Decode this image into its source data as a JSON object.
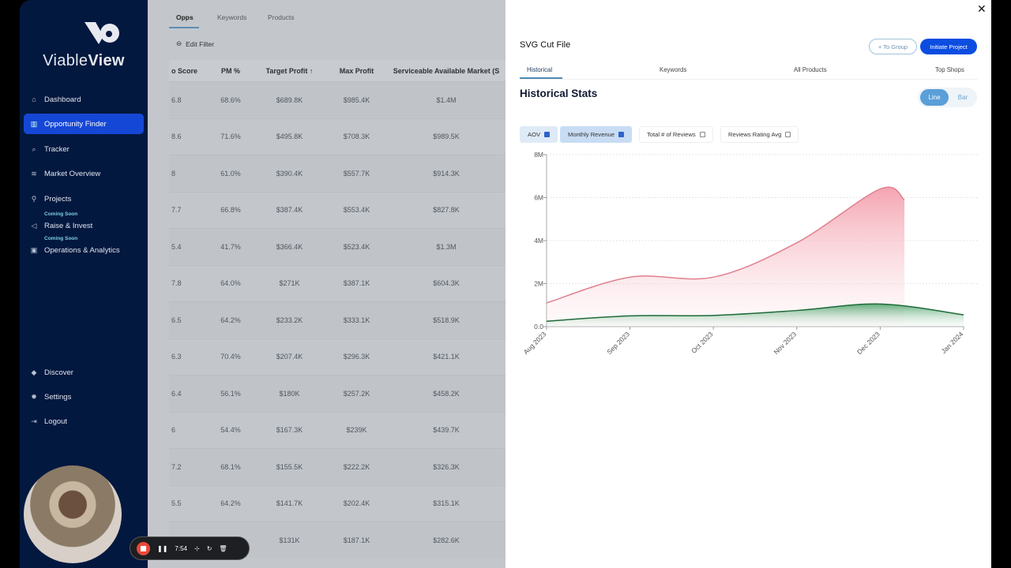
{
  "sidebar": {
    "brand_light": "Viable",
    "brand_bold": "View",
    "items": [
      {
        "label": "Dashboard",
        "icon": "home-icon"
      },
      {
        "label": "Opportunity Finder",
        "icon": "briefcase-icon",
        "active": true
      },
      {
        "label": "Tracker",
        "icon": "search-icon"
      },
      {
        "label": "Market Overview",
        "icon": "layers-icon"
      },
      {
        "label": "Projects",
        "icon": "wrench-icon"
      },
      {
        "label": "Raise & Invest",
        "icon": "megaphone-icon",
        "badge": "Coming Soon"
      },
      {
        "label": "Operations & Analytics",
        "icon": "calendar-icon",
        "badge": "Coming Soon"
      }
    ],
    "bottom": [
      {
        "label": "Discover",
        "icon": "graduation-icon"
      },
      {
        "label": "Settings",
        "icon": "gear-icon"
      },
      {
        "label": "Logout",
        "icon": "logout-icon"
      }
    ]
  },
  "main": {
    "tabs": [
      "Opps",
      "Keywords",
      "Products"
    ],
    "active_tab": "Opps",
    "edit_filter": "Edit Filter",
    "columns": [
      "o Score",
      "PM %",
      "Target Profit ↑",
      "Max Profit",
      "Serviceable Available Market (S"
    ],
    "rows": [
      [
        "6.8",
        "68.6%",
        "$689.8K",
        "$985.4K",
        "$1.4M"
      ],
      [
        "8.6",
        "71.6%",
        "$495.8K",
        "$708.3K",
        "$989.5K"
      ],
      [
        "8",
        "61.0%",
        "$390.4K",
        "$557.7K",
        "$914.3K"
      ],
      [
        "7.7",
        "66.8%",
        "$387.4K",
        "$553.4K",
        "$827.8K"
      ],
      [
        "5.4",
        "41.7%",
        "$366.4K",
        "$523.4K",
        "$1.3M"
      ],
      [
        "7.8",
        "64.0%",
        "$271K",
        "$387.1K",
        "$604.3K"
      ],
      [
        "6.5",
        "64.2%",
        "$233.2K",
        "$333.1K",
        "$518.9K"
      ],
      [
        "6.3",
        "70.4%",
        "$207.4K",
        "$296.3K",
        "$421.1K"
      ],
      [
        "6.4",
        "56.1%",
        "$180K",
        "$257.2K",
        "$458.2K"
      ],
      [
        "6",
        "54.4%",
        "$167.3K",
        "$239K",
        "$439.7K"
      ],
      [
        "7.2",
        "68.1%",
        "$155.5K",
        "$222.2K",
        "$326.3K"
      ],
      [
        "5.5",
        "64.2%",
        "$141.7K",
        "$202.4K",
        "$315.1K"
      ],
      [
        "",
        "",
        "$131K",
        "$187.1K",
        "$282.6K"
      ]
    ]
  },
  "panel": {
    "title": "SVG Cut File",
    "to_group": "+ To Group",
    "initiate": "Initiate Project",
    "tabs": [
      "Historical",
      "Keywords",
      "All Products",
      "Top Shops"
    ],
    "active_tab": "Historical",
    "section_title": "Historical Stats",
    "toggle": {
      "line": "Line",
      "bar": "Bar",
      "selected": "Line"
    },
    "metrics": [
      {
        "label": "AOV",
        "checked": true
      },
      {
        "label": "Monthly Revenue",
        "checked": true
      },
      {
        "label": "Total # of Reviews",
        "checked": false
      },
      {
        "label": "Reviews Rating Avg",
        "checked": false
      }
    ]
  },
  "chart_data": {
    "type": "area",
    "x": [
      "Aug 2023",
      "Sep 2023",
      "Oct 2023",
      "Nov 2023",
      "Dec 2023",
      "Jan 2024"
    ],
    "yticks": [
      "0.0",
      "2M",
      "4M",
      "6M",
      "8M"
    ],
    "ylim": [
      0,
      8000000
    ],
    "grid": true,
    "series": [
      {
        "name": "Monthly Revenue",
        "color": "#e0808f",
        "points": [
          [
            "Aug 2023",
            1100000
          ],
          [
            "Sep 2023",
            2300000
          ],
          [
            "Oct 2023",
            2300000
          ],
          [
            "Nov 2023",
            3900000
          ],
          [
            "Dec 2023",
            6400000
          ],
          [
            "Dec 10 2023",
            5900000
          ]
        ]
      },
      {
        "name": "AOV",
        "color": "#1f6b3a",
        "points": [
          [
            "Aug 2023",
            250000
          ],
          [
            "Sep 2023",
            500000
          ],
          [
            "Oct 2023",
            520000
          ],
          [
            "Nov 2023",
            750000
          ],
          [
            "Dec 2023",
            1050000
          ],
          [
            "Jan 2024",
            550000
          ]
        ]
      }
    ]
  },
  "recorder": {
    "time": "7:54"
  }
}
